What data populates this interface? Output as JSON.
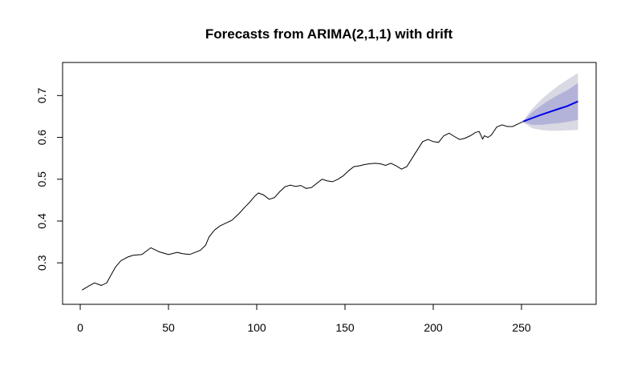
{
  "chart_data": {
    "type": "line",
    "title": "Forecasts from ARIMA(2,1,1) with drift",
    "xlabel": "",
    "ylabel": "",
    "xlim": [
      0,
      282
    ],
    "ylim": [
      0.22,
      0.76
    ],
    "x_ticks": [
      0,
      50,
      100,
      150,
      200,
      250
    ],
    "x_tick_labels": [
      "0",
      "50",
      "100",
      "150",
      "200",
      "250"
    ],
    "y_ticks": [
      0.3,
      0.4,
      0.5,
      0.6,
      0.7
    ],
    "y_tick_labels": [
      "0.3",
      "0.4",
      "0.5",
      "0.6",
      "0.7"
    ],
    "colors": {
      "series": "#000000",
      "forecast": "#0000ee",
      "band_80": "#b3b3d9",
      "band_95": "#d9d9e3"
    },
    "series": [
      {
        "name": "observed",
        "x": [
          1,
          5,
          8,
          12,
          15,
          18,
          20,
          23,
          27,
          30,
          35,
          38,
          40,
          43,
          45,
          50,
          55,
          58,
          62,
          65,
          68,
          71,
          73,
          76,
          79,
          83,
          86,
          90,
          93,
          96,
          99,
          101,
          104,
          107,
          110,
          113,
          116,
          119,
          122,
          125,
          128,
          131,
          134,
          137,
          140,
          143,
          146,
          149,
          152,
          155,
          158,
          161,
          164,
          167,
          170,
          173,
          176,
          179,
          182,
          185,
          188,
          191,
          194,
          197,
          200,
          203,
          206,
          209,
          212,
          215,
          218,
          221,
          224,
          226,
          228,
          229,
          231,
          233,
          236,
          239,
          242,
          245,
          248,
          251
        ],
        "y": [
          0.235,
          0.245,
          0.252,
          0.246,
          0.252,
          0.275,
          0.29,
          0.305,
          0.314,
          0.318,
          0.32,
          0.33,
          0.336,
          0.33,
          0.326,
          0.32,
          0.325,
          0.322,
          0.32,
          0.325,
          0.33,
          0.342,
          0.362,
          0.378,
          0.388,
          0.396,
          0.402,
          0.418,
          0.432,
          0.445,
          0.46,
          0.467,
          0.462,
          0.452,
          0.456,
          0.47,
          0.482,
          0.486,
          0.483,
          0.485,
          0.478,
          0.48,
          0.49,
          0.5,
          0.496,
          0.494,
          0.5,
          0.508,
          0.52,
          0.53,
          0.532,
          0.535,
          0.537,
          0.538,
          0.537,
          0.533,
          0.538,
          0.532,
          0.524,
          0.53,
          0.55,
          0.57,
          0.59,
          0.595,
          0.59,
          0.588,
          0.604,
          0.61,
          0.602,
          0.595,
          0.598,
          0.604,
          0.612,
          0.614,
          0.596,
          0.604,
          0.6,
          0.606,
          0.625,
          0.63,
          0.626,
          0.626,
          0.632,
          0.638
        ]
      },
      {
        "name": "forecast",
        "x": [
          251,
          256,
          261,
          266,
          271,
          276,
          282
        ],
        "y": [
          0.638,
          0.646,
          0.654,
          0.661,
          0.668,
          0.675,
          0.686
        ]
      }
    ],
    "intervals": [
      {
        "level": "95%",
        "x": [
          251,
          256,
          261,
          266,
          271,
          276,
          282
        ],
        "lower": [
          0.636,
          0.622,
          0.618,
          0.616,
          0.616,
          0.617,
          0.618
        ],
        "upper": [
          0.64,
          0.668,
          0.69,
          0.708,
          0.724,
          0.738,
          0.754
        ]
      },
      {
        "level": "80%",
        "x": [
          251,
          256,
          261,
          266,
          271,
          276,
          282
        ],
        "lower": [
          0.637,
          0.63,
          0.63,
          0.632,
          0.634,
          0.637,
          0.642
        ],
        "upper": [
          0.639,
          0.66,
          0.676,
          0.69,
          0.702,
          0.713,
          0.73
        ]
      }
    ]
  }
}
